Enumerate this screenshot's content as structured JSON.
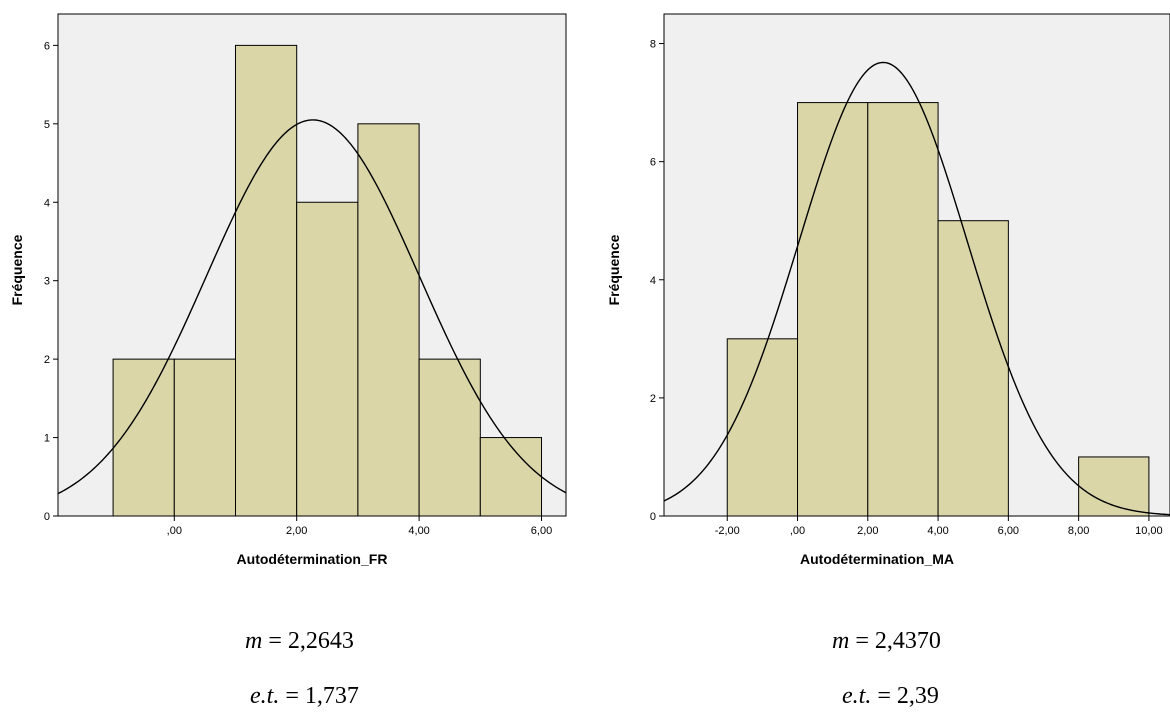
{
  "charts_colors": {
    "bar_fill": "#dad6a8",
    "bar_stroke": "#000000",
    "plot_bg": "#f0f0f0",
    "curve": "#000000"
  },
  "chart_data": [
    {
      "type": "bar",
      "subtype": "histogram_with_normal_curve",
      "xlabel": "Autodétermination_FR",
      "ylabel": "Fréquence",
      "xlim": [
        -1.9,
        6.4
      ],
      "ylim": [
        0,
        6.4
      ],
      "x_ticks": [
        0,
        2,
        4,
        6
      ],
      "x_tick_labels": [
        ",00",
        "2,00",
        "4,00",
        "6,00"
      ],
      "y_ticks": [
        0,
        1,
        2,
        3,
        4,
        5,
        6
      ],
      "y_tick_labels": [
        "0",
        "1",
        "2",
        "3",
        "4",
        "5",
        "6"
      ],
      "bins": [
        {
          "start": -1,
          "end": 0,
          "value": 2
        },
        {
          "start": 0,
          "end": 1,
          "value": 2
        },
        {
          "start": 1,
          "end": 2,
          "value": 6
        },
        {
          "start": 2,
          "end": 3,
          "value": 4
        },
        {
          "start": 3,
          "end": 4,
          "value": 5
        },
        {
          "start": 4,
          "end": 5,
          "value": 2
        },
        {
          "start": 5,
          "end": 6,
          "value": 1
        }
      ],
      "normal_curve": {
        "mean": 2.2643,
        "sd": 1.737,
        "peak": 5.05
      },
      "grid": false
    },
    {
      "type": "bar",
      "subtype": "histogram_with_normal_curve",
      "xlabel": "Autodétermination_MA",
      "ylabel": "Fréquence",
      "xlim": [
        -3.8,
        10.6
      ],
      "ylim": [
        0,
        8.5
      ],
      "x_ticks": [
        -2,
        0,
        2,
        4,
        6,
        8,
        10
      ],
      "x_tick_labels": [
        "-2,00",
        ",00",
        "2,00",
        "4,00",
        "6,00",
        "8,00",
        "10,00"
      ],
      "y_ticks": [
        0,
        2,
        4,
        6,
        8
      ],
      "y_tick_labels": [
        "0",
        "2",
        "4",
        "6",
        "8"
      ],
      "bins": [
        {
          "start": -2,
          "end": 0,
          "value": 3
        },
        {
          "start": 0,
          "end": 2,
          "value": 7
        },
        {
          "start": 2,
          "end": 4,
          "value": 7
        },
        {
          "start": 4,
          "end": 6,
          "value": 5
        },
        {
          "start": 6,
          "end": 8,
          "value": 0
        },
        {
          "start": 8,
          "end": 10,
          "value": 1
        }
      ],
      "normal_curve": {
        "mean": 2.437,
        "sd": 2.39,
        "peak": 7.68
      },
      "grid": false
    }
  ],
  "stats": [
    {
      "mean_symbol": "m",
      "mean_eq": " = 2,2643",
      "sd_symbol": "e.t.",
      "sd_eq": " = 1,737"
    },
    {
      "mean_symbol": "m",
      "mean_eq": " = 2,4370",
      "sd_symbol": "e.t.",
      "sd_eq": " = 2,39"
    }
  ]
}
